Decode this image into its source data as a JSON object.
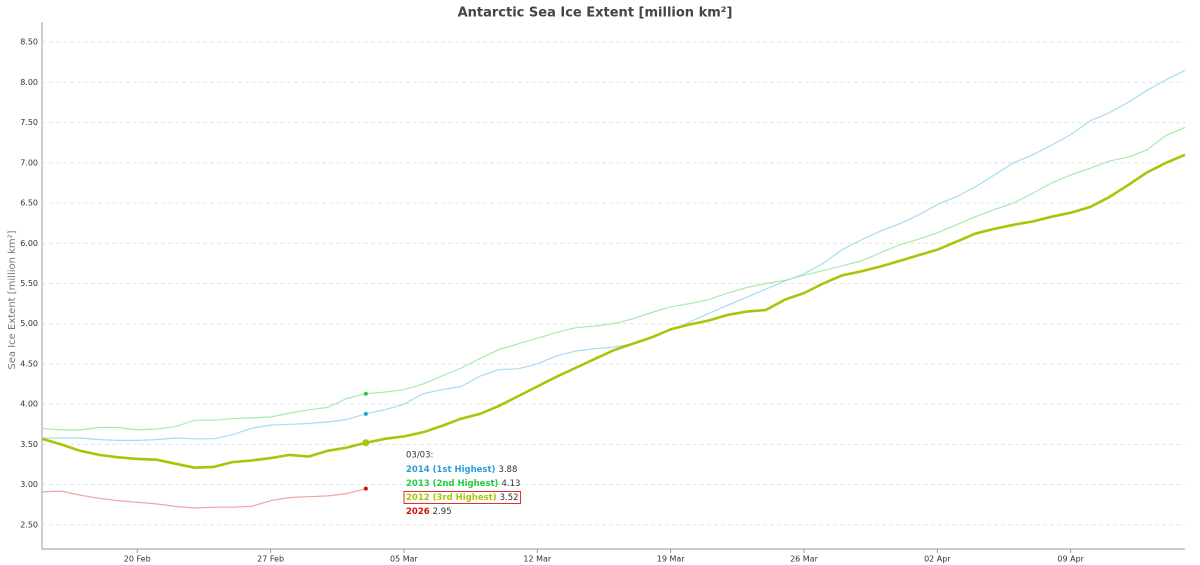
{
  "chart_data": {
    "type": "line",
    "title": "Antarctic Sea Ice Extent [million km²]",
    "y_label": "Sea Ice Extent [million km²]",
    "categories": [
      "15 Feb",
      "16 Feb",
      "17 Feb",
      "18 Feb",
      "19 Feb",
      "20 Feb",
      "21 Feb",
      "22 Feb",
      "23 Feb",
      "24 Feb",
      "25 Feb",
      "26 Feb",
      "27 Feb",
      "28 Feb",
      "29 Feb",
      "01 Mar",
      "02 Mar",
      "03 Mar",
      "04 Mar",
      "05 Mar",
      "06 Mar",
      "07 Mar",
      "08 Mar",
      "09 Mar",
      "10 Mar",
      "11 Mar",
      "12 Mar",
      "13 Mar",
      "14 Mar",
      "15 Mar",
      "16 Mar",
      "17 Mar",
      "18 Mar",
      "19 Mar",
      "20 Mar",
      "21 Mar",
      "22 Mar",
      "23 Mar",
      "24 Mar",
      "25 Mar",
      "26 Mar",
      "27 Mar",
      "28 Mar",
      "29 Mar",
      "30 Mar",
      "31 Mar",
      "01 Apr",
      "02 Apr",
      "03 Apr",
      "04 Apr",
      "05 Apr",
      "06 Apr",
      "07 Apr",
      "08 Apr",
      "09 Apr",
      "10 Apr",
      "11 Apr",
      "12 Apr",
      "13 Apr",
      "14 Apr",
      "15 Apr"
    ],
    "xticks": [
      {
        "value": 5,
        "label": "20 Feb"
      },
      {
        "value": 12,
        "label": "27 Feb"
      },
      {
        "value": 19,
        "label": "05 Mar"
      },
      {
        "value": 26,
        "label": "12 Mar"
      },
      {
        "value": 33,
        "label": "19 Mar"
      },
      {
        "value": 40,
        "label": "26 Mar"
      },
      {
        "value": 47,
        "label": "02 Apr"
      },
      {
        "value": 54,
        "label": "09 Apr"
      }
    ],
    "ylim": [
      2.2,
      8.75
    ],
    "yticks": [
      {
        "value": 2.5,
        "label": "2.50"
      },
      {
        "value": 3,
        "label": "3.00"
      },
      {
        "value": 3.5,
        "label": "3.50"
      },
      {
        "value": 4,
        "label": "4.00"
      },
      {
        "value": 4.5,
        "label": "4.50"
      },
      {
        "value": 5,
        "label": "5.00"
      },
      {
        "value": 5.5,
        "label": "5.50"
      },
      {
        "value": 6,
        "label": "6.00"
      },
      {
        "value": 6.5,
        "label": "6.50"
      },
      {
        "value": 7,
        "label": "7.00"
      },
      {
        "value": 7.5,
        "label": "7.50"
      },
      {
        "value": 8,
        "label": "8.00"
      },
      {
        "value": 8.5,
        "label": "8.50"
      }
    ],
    "grid": true,
    "series": [
      {
        "name": "2014 (1st Highest)",
        "color": "#a9dcef",
        "marker_color": "#2a9fd6",
        "width": 1.2,
        "values": [
          3.58,
          3.58,
          3.58,
          3.56,
          3.55,
          3.55,
          3.56,
          3.58,
          3.57,
          3.57,
          3.62,
          3.7,
          3.74,
          3.75,
          3.76,
          3.78,
          3.81,
          3.88,
          3.93,
          4.0,
          4.13,
          4.18,
          4.22,
          4.35,
          4.43,
          4.44,
          4.5,
          4.6,
          4.66,
          4.69,
          4.71,
          4.75,
          4.83,
          4.92,
          5.02,
          5.13,
          5.23,
          5.33,
          5.43,
          5.53,
          5.62,
          5.75,
          5.92,
          6.04,
          6.15,
          6.24,
          6.35,
          6.48,
          6.58,
          6.7,
          6.85,
          7.0,
          7.1,
          7.22,
          7.35,
          7.52,
          7.62,
          7.75,
          7.9,
          8.03,
          8.15
        ]
      },
      {
        "name": "2013 (2nd Highest)",
        "color": "#a5ecb0",
        "marker_color": "#22cc44",
        "width": 1.2,
        "values": [
          3.7,
          3.68,
          3.68,
          3.71,
          3.71,
          3.68,
          3.69,
          3.72,
          3.8,
          3.8,
          3.82,
          3.83,
          3.84,
          3.89,
          3.93,
          3.96,
          4.07,
          4.13,
          4.15,
          4.18,
          4.25,
          4.35,
          4.45,
          4.57,
          4.68,
          4.75,
          4.82,
          4.89,
          4.95,
          4.97,
          5.0,
          5.06,
          5.14,
          5.21,
          5.25,
          5.3,
          5.38,
          5.45,
          5.5,
          5.54,
          5.6,
          5.66,
          5.72,
          5.78,
          5.88,
          5.98,
          6.05,
          6.13,
          6.23,
          6.33,
          6.42,
          6.5,
          6.62,
          6.75,
          6.85,
          6.93,
          7.02,
          7.07,
          7.16,
          7.34,
          7.44
        ]
      },
      {
        "name": "2012 (3rd Highest)",
        "color": "#aac40a",
        "marker_color": "#aac40a",
        "width": 2.6,
        "values": [
          3.57,
          3.5,
          3.42,
          3.37,
          3.34,
          3.32,
          3.31,
          3.26,
          3.21,
          3.22,
          3.28,
          3.3,
          3.33,
          3.37,
          3.35,
          3.42,
          3.46,
          3.52,
          3.57,
          3.6,
          3.65,
          3.73,
          3.82,
          3.88,
          3.98,
          4.1,
          4.22,
          4.34,
          4.45,
          4.56,
          4.67,
          4.75,
          4.83,
          4.93,
          4.99,
          5.04,
          5.11,
          5.15,
          5.17,
          5.3,
          5.38,
          5.5,
          5.6,
          5.65,
          5.71,
          5.78,
          5.85,
          5.92,
          6.02,
          6.12,
          6.18,
          6.23,
          6.27,
          6.33,
          6.38,
          6.45,
          6.57,
          6.72,
          6.88,
          7.0,
          7.1
        ]
      },
      {
        "name": "2026",
        "color": "#f2a4a0",
        "marker_color": "#d01010",
        "width": 1.2,
        "values": [
          2.91,
          2.92,
          2.87,
          2.83,
          2.8,
          2.78,
          2.76,
          2.73,
          2.71,
          2.72,
          2.72,
          2.73,
          2.8,
          2.84,
          2.85,
          2.86,
          2.89,
          2.95,
          null,
          null,
          null,
          null,
          null,
          null,
          null,
          null,
          null,
          null,
          null,
          null,
          null,
          null,
          null,
          null,
          null,
          null,
          null,
          null,
          null,
          null,
          null,
          null,
          null,
          null,
          null,
          null,
          null,
          null,
          null,
          null,
          null,
          null,
          null,
          null,
          null,
          null,
          null,
          null,
          null,
          null,
          null
        ]
      }
    ],
    "tooltip": {
      "date": "03/03:",
      "index": 17,
      "highlight": 2
    }
  }
}
